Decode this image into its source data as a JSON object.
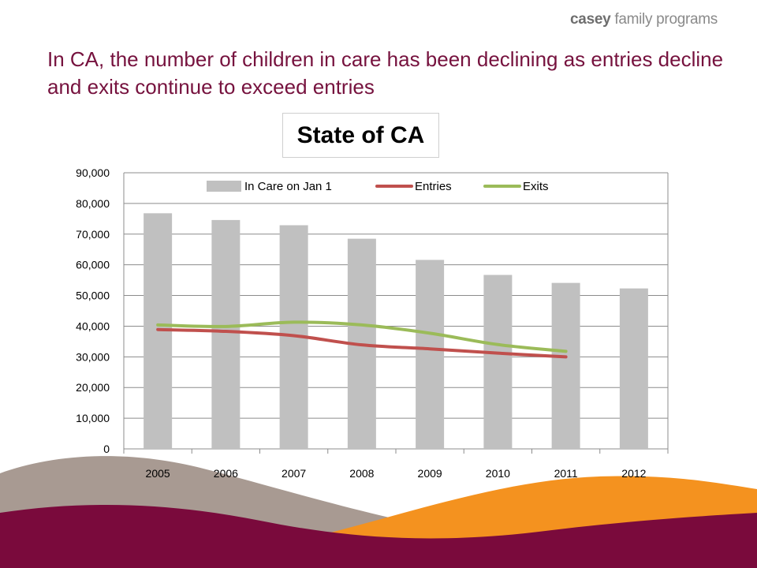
{
  "brand": {
    "name_bold": "casey",
    "name_rest": " family programs"
  },
  "headline": "In CA, the number of children in care has been declining as entries decline and exits continue to exceed entries",
  "colors": {
    "headline": "#76123e",
    "bars": "#c0c0c0",
    "entries": "#c0504d",
    "exits": "#9bbb59",
    "wave_maroon": "#7a0a3c",
    "wave_orange": "#f4921f",
    "wave_taupe": "#a89a92"
  },
  "chart_data": {
    "type": "bar",
    "title": "State of CA",
    "categories": [
      "2005",
      "2006",
      "2007",
      "2008",
      "2009",
      "2010",
      "2011",
      "2012"
    ],
    "series": [
      {
        "name": "In Care on Jan 1",
        "type": "bar",
        "values": [
          76800,
          74600,
          72900,
          68500,
          61600,
          56700,
          54100,
          52300
        ]
      },
      {
        "name": "Entries",
        "type": "line",
        "values": [
          38900,
          38300,
          36900,
          33900,
          32600,
          31200,
          30000,
          null
        ]
      },
      {
        "name": "Exits",
        "type": "line",
        "values": [
          40400,
          39900,
          41300,
          40400,
          37700,
          34000,
          31800,
          null
        ]
      }
    ],
    "ylim": [
      0,
      90000
    ],
    "yticks": [
      0,
      10000,
      20000,
      30000,
      40000,
      50000,
      60000,
      70000,
      80000,
      90000
    ],
    "ytick_labels": [
      "0",
      "10,000",
      "20,000",
      "30,000",
      "40,000",
      "50,000",
      "60,000",
      "70,000",
      "80,000",
      "90,000"
    ],
    "grid": true,
    "legend_position": "top"
  }
}
